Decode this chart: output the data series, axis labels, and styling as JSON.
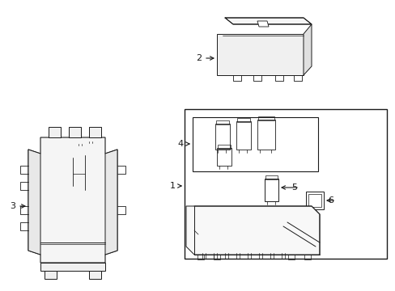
{
  "background_color": "#ffffff",
  "line_color": "#1a1a1a",
  "figure_width": 4.89,
  "figure_height": 3.6,
  "dpi": 100,
  "gray_fill": "#d8d8d8",
  "light_fill": "#eeeeee"
}
